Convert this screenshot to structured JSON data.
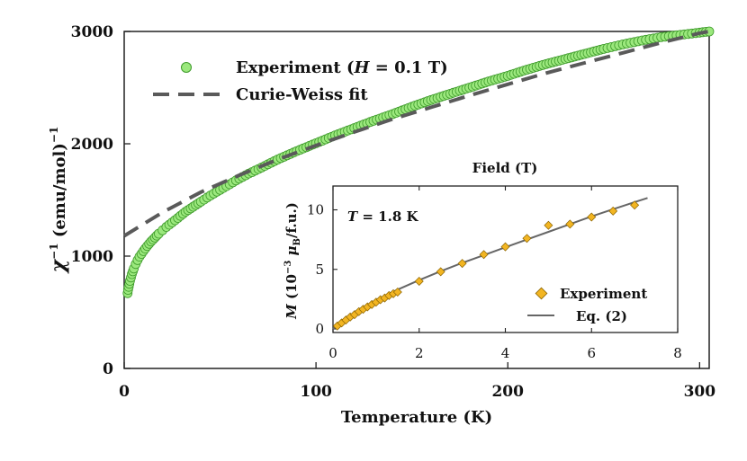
{
  "chart_data": [
    {
      "type": "scatter",
      "panel": "main",
      "xlabel": "Temperature (K)",
      "ylabel_prefix": "χ",
      "ylabel_sup": "−1",
      "ylabel_rest": " (emu/mol)",
      "ylabel_tail_sup": "−1",
      "xlim": [
        0,
        305
      ],
      "ylim": [
        0,
        3000
      ],
      "xticks": [
        "0",
        "100",
        "200",
        "300"
      ],
      "yticks": [
        "0",
        "1000",
        "2000",
        "3000"
      ],
      "legend_position": "top-left",
      "series": [
        {
          "name": "Experiment",
          "legend_prefix": "Experiment (",
          "legend_italic": "H",
          "legend_suffix": " = 0.1 T)",
          "kind": "markers",
          "color": "#9be87d",
          "edge_color": "#3e9a2b",
          "x": [
            1.8,
            2,
            3,
            4,
            5,
            6,
            7,
            8,
            10,
            12,
            14,
            16,
            18,
            20,
            22,
            25,
            28,
            32,
            36,
            40,
            45,
            50,
            55,
            60,
            65,
            70,
            80,
            90,
            100,
            110,
            120,
            130,
            140,
            150,
            160,
            170,
            180,
            190,
            200,
            210,
            220,
            230,
            240,
            250,
            260,
            270,
            280,
            290,
            300,
            305
          ],
          "y": [
            670,
            700,
            780,
            840,
            890,
            930,
            965,
            995,
            1045,
            1090,
            1130,
            1165,
            1200,
            1230,
            1260,
            1300,
            1340,
            1395,
            1440,
            1485,
            1540,
            1590,
            1640,
            1690,
            1735,
            1775,
            1860,
            1935,
            2005,
            2075,
            2140,
            2205,
            2265,
            2330,
            2390,
            2445,
            2500,
            2555,
            2605,
            2660,
            2710,
            2755,
            2800,
            2845,
            2885,
            2920,
            2950,
            2970,
            2990,
            3000
          ]
        },
        {
          "name": "Curie-Weiss fit",
          "legend": "Curie-Weiss fit",
          "kind": "dashed-line",
          "color": "#5a5a5a",
          "x": [
            0,
            20,
            40,
            60,
            80,
            100,
            120,
            140,
            160,
            180,
            200,
            220,
            240,
            260,
            280,
            300,
            305
          ],
          "y": [
            1180,
            1390,
            1570,
            1720,
            1860,
            1985,
            2105,
            2220,
            2325,
            2430,
            2530,
            2630,
            2720,
            2810,
            2900,
            2985,
            3000
          ]
        }
      ]
    },
    {
      "type": "scatter",
      "panel": "inset",
      "title": "Field (T)",
      "annotation_italic": "T",
      "annotation_rest": " = 1.8 K",
      "ylabel_italic": "M",
      "ylabel_mid": " (10",
      "ylabel_sup": "−3",
      "ylabel_mu": " μ",
      "ylabel_sub": "B",
      "ylabel_tail": "/f.u.)",
      "xlim": [
        0,
        8
      ],
      "ylim": [
        -0.3,
        12
      ],
      "xticks": [
        "0",
        "2",
        "4",
        "6",
        "8"
      ],
      "yticks": [
        "0",
        "5",
        "10"
      ],
      "legend_position": "bottom-right",
      "series": [
        {
          "name": "Experiment",
          "legend": "Experiment",
          "kind": "diamond-markers",
          "color": "#f2b522",
          "edge_color": "#8a6300",
          "x": [
            0.1,
            0.2,
            0.3,
            0.4,
            0.5,
            0.6,
            0.7,
            0.8,
            0.9,
            1.0,
            1.1,
            1.2,
            1.3,
            1.4,
            1.5,
            2.0,
            2.5,
            3.0,
            3.5,
            4.0,
            4.5,
            5.0,
            5.5,
            6.0,
            6.5,
            7.0
          ],
          "y": [
            0.25,
            0.5,
            0.75,
            1.0,
            1.2,
            1.45,
            1.65,
            1.85,
            2.05,
            2.25,
            2.45,
            2.6,
            2.8,
            2.95,
            3.1,
            4.0,
            4.8,
            5.5,
            6.25,
            6.9,
            7.6,
            8.7,
            8.8,
            9.4,
            9.9,
            10.4
          ]
        },
        {
          "name": "Eq. (2)",
          "legend": "Eq. (2)",
          "kind": "line",
          "color": "#666666",
          "x": [
            0,
            0.5,
            1,
            1.5,
            2,
            2.5,
            3,
            3.5,
            4,
            4.5,
            5,
            5.5,
            6,
            6.5,
            7,
            7.3
          ],
          "y": [
            0,
            1.3,
            2.4,
            3.3,
            4.1,
            4.85,
            5.55,
            6.2,
            6.85,
            7.5,
            8.15,
            8.8,
            9.45,
            10.05,
            10.65,
            11.0
          ]
        }
      ]
    }
  ]
}
